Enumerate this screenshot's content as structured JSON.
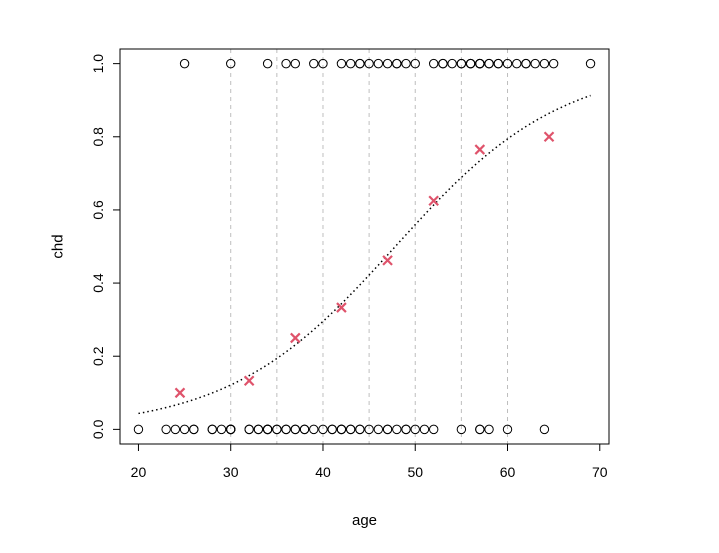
{
  "chart_data": {
    "type": "scatter",
    "xlabel": "age",
    "ylabel": "chd",
    "xlim": [
      18.0,
      71.0
    ],
    "ylim": [
      -0.04,
      1.04
    ],
    "x_ticks": [
      20,
      30,
      40,
      50,
      60,
      70
    ],
    "y_ticks": [
      0.0,
      0.2,
      0.4,
      0.6,
      0.8,
      1.0
    ],
    "x_tick_labels": [
      "20",
      "30",
      "40",
      "50",
      "60",
      "70"
    ],
    "y_tick_labels": [
      "0.0",
      "0.2",
      "0.4",
      "0.6",
      "0.8",
      "1.0"
    ],
    "vertical_reference_lines": [
      30,
      35,
      40,
      45,
      50,
      55,
      60
    ],
    "colors": {
      "points": "#000000",
      "group_means": "#df536b",
      "reference_lines": "#bebebe",
      "fitted_curve": "#000000"
    },
    "series": [
      {
        "marker": "open-circle",
        "points": [
          [
            20,
            0
          ],
          [
            23,
            0
          ],
          [
            24,
            0
          ],
          [
            25,
            0
          ],
          [
            25,
            1
          ],
          [
            26,
            0
          ],
          [
            26,
            0
          ],
          [
            28,
            0
          ],
          [
            28,
            0
          ],
          [
            29,
            0
          ],
          [
            30,
            0
          ],
          [
            30,
            0
          ],
          [
            30,
            0
          ],
          [
            30,
            0
          ],
          [
            30,
            0
          ],
          [
            30,
            1
          ],
          [
            32,
            0
          ],
          [
            32,
            0
          ],
          [
            33,
            0
          ],
          [
            33,
            0
          ],
          [
            34,
            0
          ],
          [
            34,
            0
          ],
          [
            34,
            1
          ],
          [
            34,
            0
          ],
          [
            34,
            0
          ],
          [
            35,
            0
          ],
          [
            35,
            0
          ],
          [
            36,
            0
          ],
          [
            36,
            1
          ],
          [
            36,
            0
          ],
          [
            37,
            0
          ],
          [
            37,
            1
          ],
          [
            37,
            0
          ],
          [
            38,
            0
          ],
          [
            38,
            0
          ],
          [
            39,
            0
          ],
          [
            39,
            1
          ],
          [
            40,
            0
          ],
          [
            40,
            1
          ],
          [
            41,
            0
          ],
          [
            41,
            0
          ],
          [
            42,
            0
          ],
          [
            42,
            0
          ],
          [
            42,
            0
          ],
          [
            42,
            1
          ],
          [
            43,
            0
          ],
          [
            43,
            0
          ],
          [
            43,
            1
          ],
          [
            44,
            0
          ],
          [
            44,
            0
          ],
          [
            44,
            1
          ],
          [
            44,
            1
          ],
          [
            45,
            0
          ],
          [
            45,
            1
          ],
          [
            46,
            0
          ],
          [
            46,
            1
          ],
          [
            47,
            0
          ],
          [
            47,
            0
          ],
          [
            47,
            1
          ],
          [
            48,
            0
          ],
          [
            48,
            1
          ],
          [
            48,
            1
          ],
          [
            49,
            0
          ],
          [
            49,
            0
          ],
          [
            49,
            1
          ],
          [
            50,
            0
          ],
          [
            50,
            1
          ],
          [
            51,
            0
          ],
          [
            52,
            0
          ],
          [
            52,
            1
          ],
          [
            53,
            1
          ],
          [
            53,
            1
          ],
          [
            54,
            1
          ],
          [
            55,
            0
          ],
          [
            55,
            1
          ],
          [
            55,
            1
          ],
          [
            56,
            1
          ],
          [
            56,
            1
          ],
          [
            56,
            1
          ],
          [
            57,
            0
          ],
          [
            57,
            0
          ],
          [
            57,
            1
          ],
          [
            57,
            1
          ],
          [
            57,
            1
          ],
          [
            57,
            1
          ],
          [
            58,
            0
          ],
          [
            58,
            1
          ],
          [
            58,
            1
          ],
          [
            59,
            1
          ],
          [
            59,
            1
          ],
          [
            60,
            0
          ],
          [
            60,
            1
          ],
          [
            61,
            1
          ],
          [
            62,
            1
          ],
          [
            62,
            1
          ],
          [
            63,
            1
          ],
          [
            64,
            0
          ],
          [
            64,
            1
          ],
          [
            65,
            1
          ],
          [
            69,
            1
          ]
        ]
      },
      {
        "marker": "cross",
        "points": [
          [
            24.5,
            0.1
          ],
          [
            32.0,
            0.133
          ],
          [
            37.0,
            0.25
          ],
          [
            42.0,
            0.333
          ],
          [
            47.0,
            0.462
          ],
          [
            52.0,
            0.625
          ],
          [
            57.0,
            0.765
          ],
          [
            64.5,
            0.8
          ]
        ]
      },
      {
        "marker": "dotted-line",
        "logistic_fit": {
          "intercept": -5.31,
          "slope": 0.111
        },
        "x_range": [
          20,
          69
        ]
      }
    ]
  }
}
